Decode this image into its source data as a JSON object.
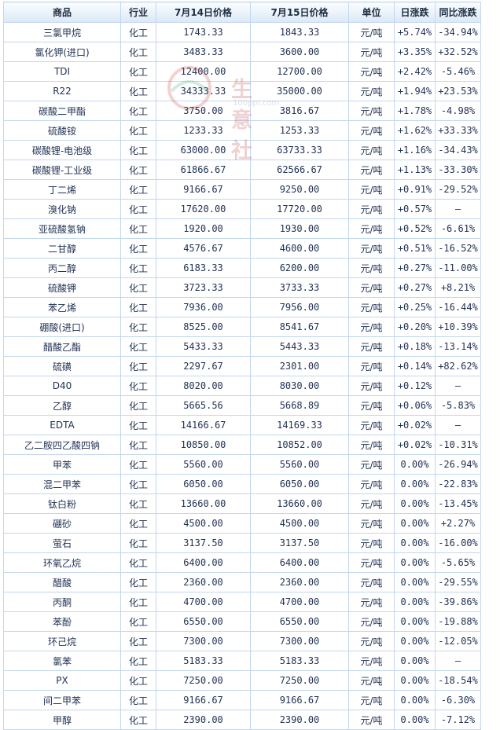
{
  "columns": [
    "商品",
    "行业",
    "7月14日价格",
    "7月15日价格",
    "单位",
    "日涨跌",
    "同比涨跌"
  ],
  "watermark": {
    "text": "生意社",
    "url": "100ppi.com"
  },
  "colors": {
    "up": "#e01010",
    "down": "#118a11",
    "border": "#c3d7ef",
    "header": "#dbe8f7"
  },
  "rows": [
    {
      "name": "三氯甲烷",
      "industry": "化工",
      "p1": "1743.33",
      "p2": "1843.33",
      "unit": "元/吨",
      "day": "+5.74%",
      "yoy": "-34.94%"
    },
    {
      "name": "氯化钾(进口)",
      "industry": "化工",
      "p1": "3483.33",
      "p2": "3600.00",
      "unit": "元/吨",
      "day": "+3.35%",
      "yoy": "+32.52%"
    },
    {
      "name": "TDI",
      "industry": "化工",
      "p1": "12400.00",
      "p2": "12700.00",
      "unit": "元/吨",
      "day": "+2.42%",
      "yoy": "-5.46%"
    },
    {
      "name": "R22",
      "industry": "化工",
      "p1": "34333.33",
      "p2": "35000.00",
      "unit": "元/吨",
      "day": "+1.94%",
      "yoy": "+23.53%"
    },
    {
      "name": "碳酸二甲酯",
      "industry": "化工",
      "p1": "3750.00",
      "p2": "3816.67",
      "unit": "元/吨",
      "day": "+1.78%",
      "yoy": "-4.98%"
    },
    {
      "name": "硫酸铵",
      "industry": "化工",
      "p1": "1233.33",
      "p2": "1253.33",
      "unit": "元/吨",
      "day": "+1.62%",
      "yoy": "+33.33%"
    },
    {
      "name": "碳酸锂-电池级",
      "industry": "化工",
      "p1": "63000.00",
      "p2": "63733.33",
      "unit": "元/吨",
      "day": "+1.16%",
      "yoy": "-34.43%"
    },
    {
      "name": "碳酸锂-工业级",
      "industry": "化工",
      "p1": "61866.67",
      "p2": "62566.67",
      "unit": "元/吨",
      "day": "+1.13%",
      "yoy": "-33.30%"
    },
    {
      "name": "丁二烯",
      "industry": "化工",
      "p1": "9166.67",
      "p2": "9250.00",
      "unit": "元/吨",
      "day": "+0.91%",
      "yoy": "-29.52%"
    },
    {
      "name": "溴化钠",
      "industry": "化工",
      "p1": "17620.00",
      "p2": "17720.00",
      "unit": "元/吨",
      "day": "+0.57%",
      "yoy": "—"
    },
    {
      "name": "亚硫酸氢钠",
      "industry": "化工",
      "p1": "1920.00",
      "p2": "1930.00",
      "unit": "元/吨",
      "day": "+0.52%",
      "yoy": "-6.61%"
    },
    {
      "name": "二甘醇",
      "industry": "化工",
      "p1": "4576.67",
      "p2": "4600.00",
      "unit": "元/吨",
      "day": "+0.51%",
      "yoy": "-16.52%"
    },
    {
      "name": "丙二醇",
      "industry": "化工",
      "p1": "6183.33",
      "p2": "6200.00",
      "unit": "元/吨",
      "day": "+0.27%",
      "yoy": "-11.00%"
    },
    {
      "name": "硫酸钾",
      "industry": "化工",
      "p1": "3723.33",
      "p2": "3733.33",
      "unit": "元/吨",
      "day": "+0.27%",
      "yoy": "+8.21%"
    },
    {
      "name": "苯乙烯",
      "industry": "化工",
      "p1": "7936.00",
      "p2": "7956.00",
      "unit": "元/吨",
      "day": "+0.25%",
      "yoy": "-16.44%"
    },
    {
      "name": "硼酸(进口)",
      "industry": "化工",
      "p1": "8525.00",
      "p2": "8541.67",
      "unit": "元/吨",
      "day": "+0.20%",
      "yoy": "+10.39%"
    },
    {
      "name": "醋酸乙酯",
      "industry": "化工",
      "p1": "5433.33",
      "p2": "5443.33",
      "unit": "元/吨",
      "day": "+0.18%",
      "yoy": "-13.14%"
    },
    {
      "name": "硫磺",
      "industry": "化工",
      "p1": "2297.67",
      "p2": "2301.00",
      "unit": "元/吨",
      "day": "+0.14%",
      "yoy": "+82.62%"
    },
    {
      "name": "D40",
      "industry": "化工",
      "p1": "8020.00",
      "p2": "8030.00",
      "unit": "元/吨",
      "day": "+0.12%",
      "yoy": "—"
    },
    {
      "name": "乙醇",
      "industry": "化工",
      "p1": "5665.56",
      "p2": "5668.89",
      "unit": "元/吨",
      "day": "+0.06%",
      "yoy": "-5.83%"
    },
    {
      "name": "EDTA",
      "industry": "化工",
      "p1": "14166.67",
      "p2": "14169.33",
      "unit": "元/吨",
      "day": "+0.02%",
      "yoy": "—"
    },
    {
      "name": "乙二胺四乙酸四钠",
      "industry": "化工",
      "p1": "10850.00",
      "p2": "10852.00",
      "unit": "元/吨",
      "day": "+0.02%",
      "yoy": "-10.31%"
    },
    {
      "name": "甲苯",
      "industry": "化工",
      "p1": "5560.00",
      "p2": "5560.00",
      "unit": "元/吨",
      "day": "0.00%",
      "yoy": "-26.94%"
    },
    {
      "name": "混二甲苯",
      "industry": "化工",
      "p1": "6050.00",
      "p2": "6050.00",
      "unit": "元/吨",
      "day": "0.00%",
      "yoy": "-22.83%"
    },
    {
      "name": "钛白粉",
      "industry": "化工",
      "p1": "13660.00",
      "p2": "13660.00",
      "unit": "元/吨",
      "day": "0.00%",
      "yoy": "-13.45%"
    },
    {
      "name": "硼砂",
      "industry": "化工",
      "p1": "4500.00",
      "p2": "4500.00",
      "unit": "元/吨",
      "day": "0.00%",
      "yoy": "+2.27%"
    },
    {
      "name": "萤石",
      "industry": "化工",
      "p1": "3137.50",
      "p2": "3137.50",
      "unit": "元/吨",
      "day": "0.00%",
      "yoy": "-16.00%"
    },
    {
      "name": "环氧乙烷",
      "industry": "化工",
      "p1": "6400.00",
      "p2": "6400.00",
      "unit": "元/吨",
      "day": "0.00%",
      "yoy": "-5.65%"
    },
    {
      "name": "醋酸",
      "industry": "化工",
      "p1": "2360.00",
      "p2": "2360.00",
      "unit": "元/吨",
      "day": "0.00%",
      "yoy": "-29.55%"
    },
    {
      "name": "丙酮",
      "industry": "化工",
      "p1": "4700.00",
      "p2": "4700.00",
      "unit": "元/吨",
      "day": "0.00%",
      "yoy": "-39.86%"
    },
    {
      "name": "苯酚",
      "industry": "化工",
      "p1": "6550.00",
      "p2": "6550.00",
      "unit": "元/吨",
      "day": "0.00%",
      "yoy": "-19.88%"
    },
    {
      "name": "环己烷",
      "industry": "化工",
      "p1": "7300.00",
      "p2": "7300.00",
      "unit": "元/吨",
      "day": "0.00%",
      "yoy": "-12.05%"
    },
    {
      "name": "氯苯",
      "industry": "化工",
      "p1": "5183.33",
      "p2": "5183.33",
      "unit": "元/吨",
      "day": "0.00%",
      "yoy": "—"
    },
    {
      "name": "PX",
      "industry": "化工",
      "p1": "7250.00",
      "p2": "7250.00",
      "unit": "元/吨",
      "day": "0.00%",
      "yoy": "-18.54%"
    },
    {
      "name": "间二甲苯",
      "industry": "化工",
      "p1": "9166.67",
      "p2": "9166.67",
      "unit": "元/吨",
      "day": "0.00%",
      "yoy": "-6.30%"
    },
    {
      "name": "甲醇",
      "industry": "化工",
      "p1": "2390.00",
      "p2": "2390.00",
      "unit": "元/吨",
      "day": "0.00%",
      "yoy": "-7.12%"
    }
  ]
}
